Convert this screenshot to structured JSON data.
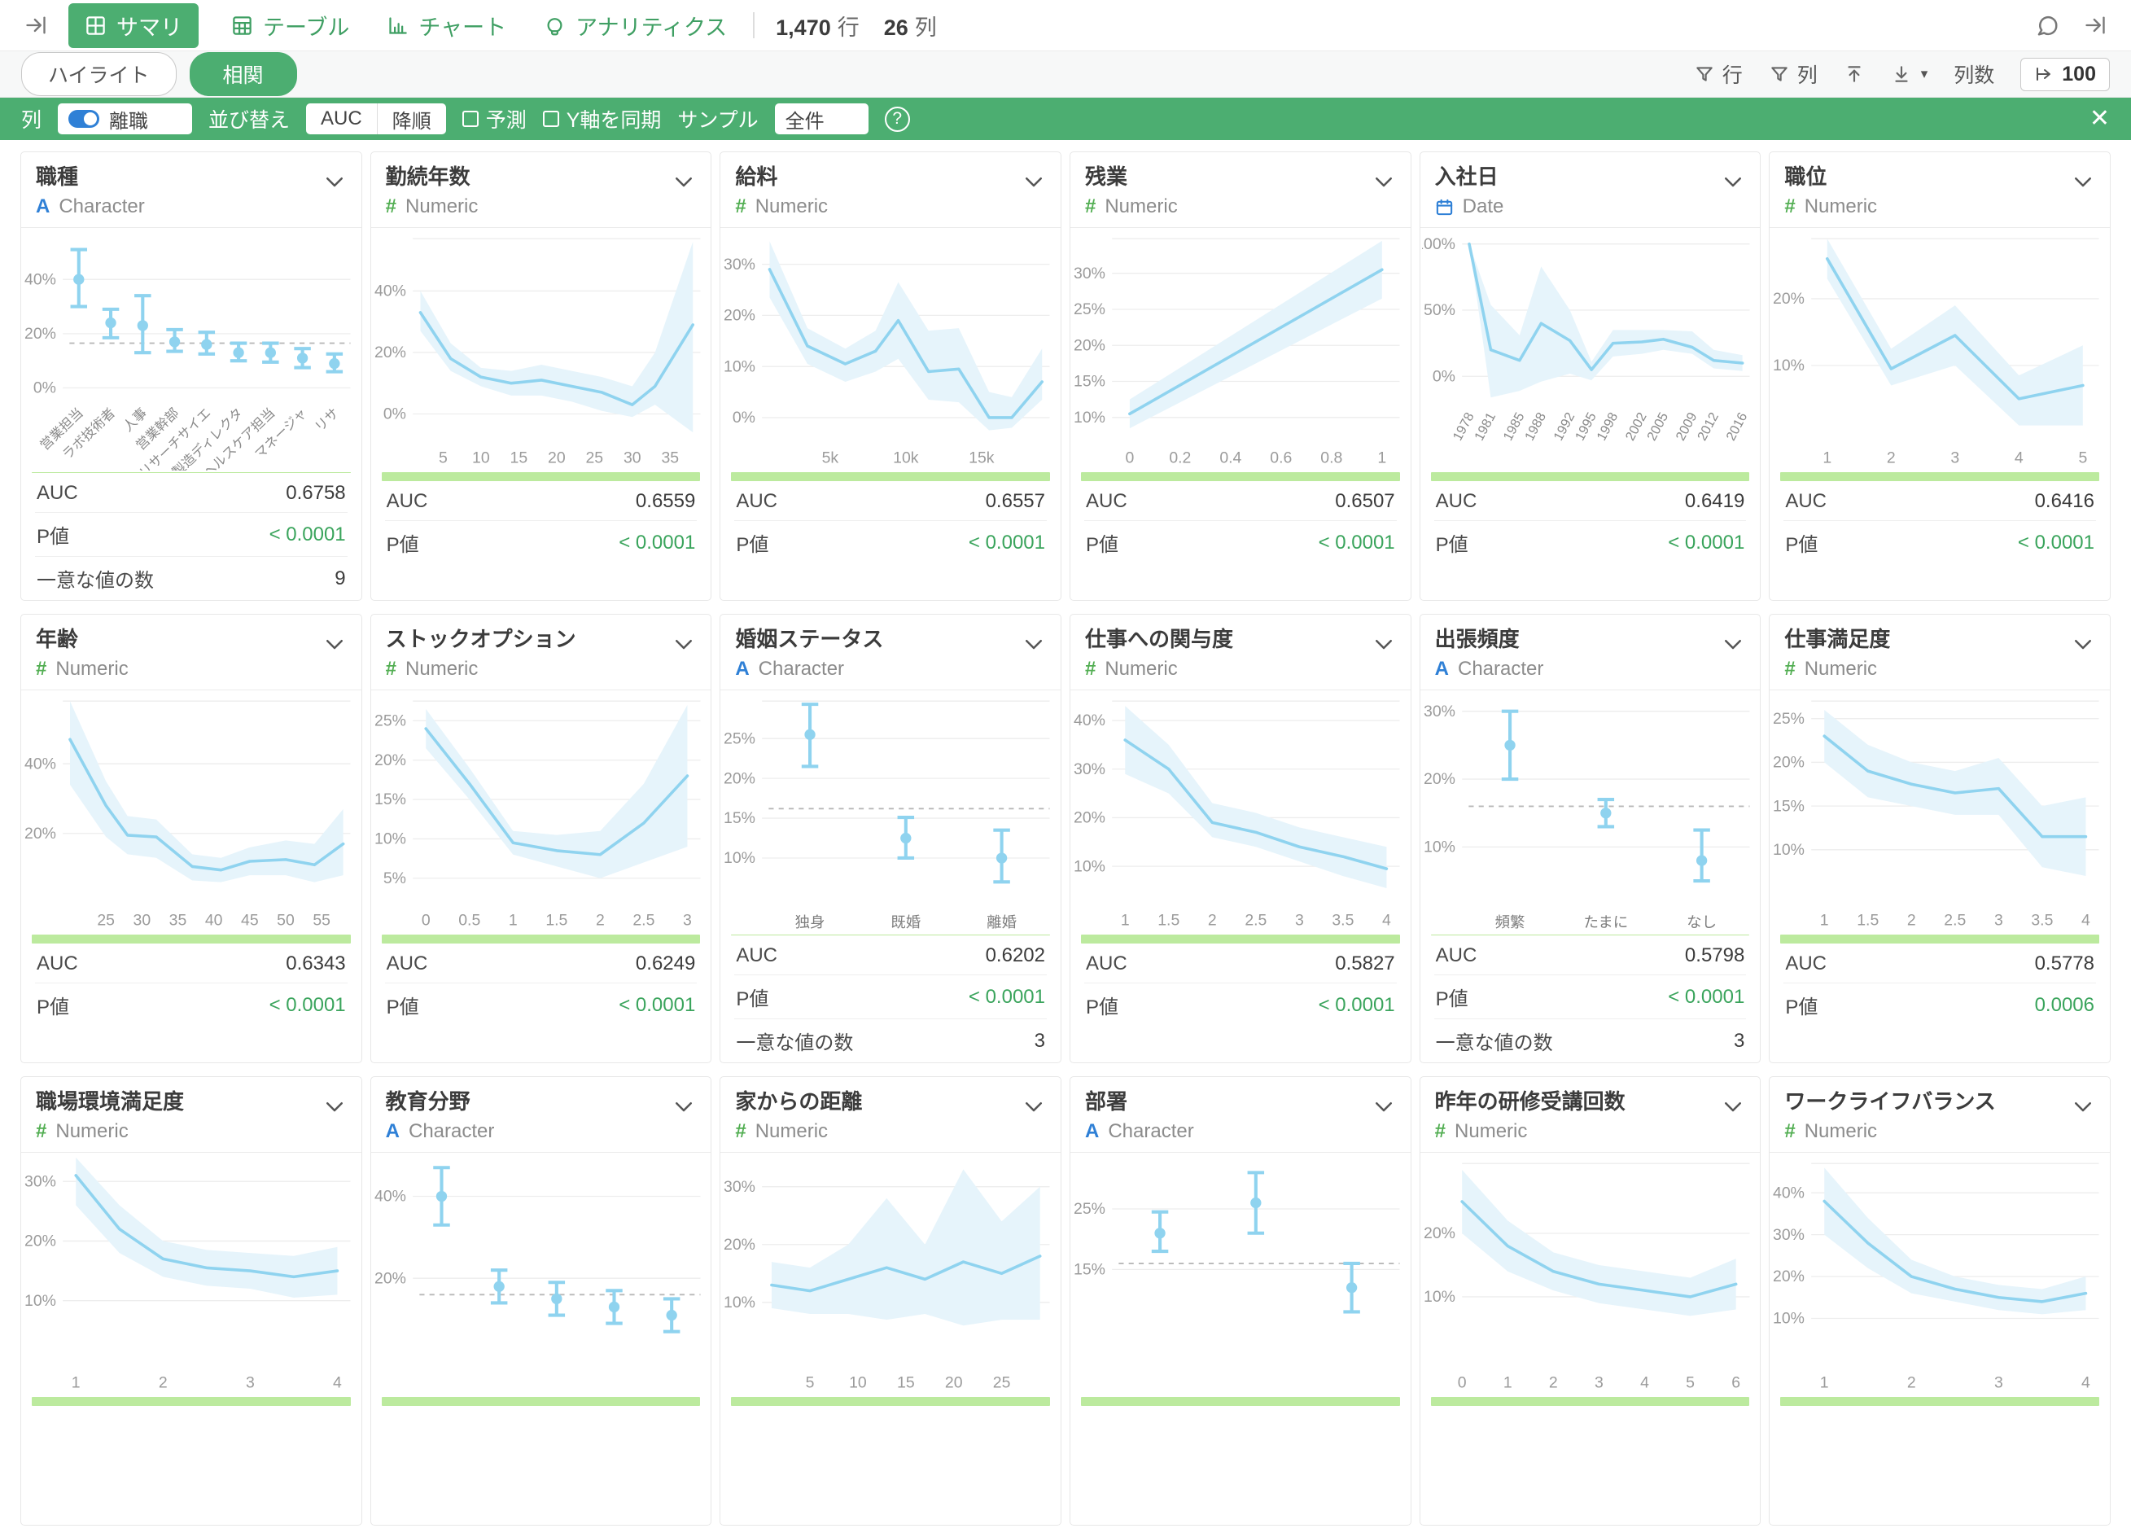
{
  "colors": {
    "accent": "#4cae71",
    "accent_text": "#3f9f63",
    "pvalue_green": "#3aa45c",
    "chart_line": "#8fd3ef",
    "chart_band": "#e6f4fb",
    "progress_bar": "#bcea9e",
    "toggle_blue": "#2f80d6",
    "character_icon_blue": "#2f80d6",
    "numeric_icon_green": "#52ae52"
  },
  "topbar": {
    "tabs": [
      {
        "label": "サマリ",
        "icon": "summary-grid-icon",
        "active": true
      },
      {
        "label": "テーブル",
        "icon": "table-icon",
        "active": false
      },
      {
        "label": "チャート",
        "icon": "bar-chart-icon",
        "active": false
      },
      {
        "label": "アナリティクス",
        "icon": "lightbulb-icon",
        "active": false
      }
    ],
    "rows_value": "1,470",
    "rows_unit": "行",
    "cols_value": "26",
    "cols_unit": "列"
  },
  "subbar": {
    "highlight_label": "ハイライト",
    "correlation_label": "相関",
    "filter_rows_label": "行",
    "filter_cols_label": "列",
    "column_count_label": "列数",
    "column_count_value": "100"
  },
  "greenbar": {
    "column_label": "列",
    "column_value": "離職",
    "sort_label": "並び替え",
    "sort_value": "AUC",
    "sort_order": "降順",
    "predict_label": "予測",
    "sync_y_label": "Y軸を同期",
    "sample_label": "サンプル",
    "sample_value": "全件"
  },
  "stat_labels": {
    "auc": "AUC",
    "pvalue": "P値",
    "unique": "一意な値の数"
  },
  "cards": [
    {
      "title": "職種",
      "type": "character",
      "type_label": "Character",
      "auc": "0.6758",
      "pvalue": "< 0.0001",
      "unique": "9",
      "chart_data": {
        "type": "errorbar",
        "rotate": true,
        "ymin": -4,
        "ymax": 55,
        "yticks": [
          0,
          20,
          40
        ],
        "dashed": 16.5,
        "topline": false,
        "cats": [
          "営業担当",
          "ラボ技術者",
          "人事",
          "営業幹部",
          "リサーチサイエ",
          "製造ディレクタ",
          "ヘルスケア担当",
          "マネージャ",
          "リサ"
        ],
        "center": [
          40,
          24,
          23,
          17,
          16,
          13,
          13,
          11,
          9
        ],
        "lo": [
          30,
          18.5,
          13,
          13.5,
          12.5,
          10,
          9.5,
          7.5,
          6
        ],
        "hi": [
          51,
          29,
          34,
          21.5,
          20.5,
          16.5,
          16.5,
          14.5,
          12.5
        ]
      }
    },
    {
      "title": "勤続年数",
      "type": "numeric",
      "type_label": "Numeric",
      "auc": "0.6559",
      "pvalue": "< 0.0001",
      "chart_data": {
        "type": "line",
        "xmin": 1,
        "xmax": 39,
        "ymin": -7,
        "ymax": 57,
        "yticks": [
          0,
          20,
          40
        ],
        "topline": true,
        "xticks": [
          5,
          10,
          15,
          20,
          25,
          30,
          35
        ],
        "x": [
          2,
          6,
          10,
          14,
          18,
          22,
          26,
          30,
          33,
          38
        ],
        "y": [
          33,
          18,
          12,
          10,
          11,
          9,
          7,
          3,
          9,
          29
        ],
        "hi": [
          40,
          23,
          15,
          14,
          16,
          14,
          12,
          9,
          20,
          56
        ],
        "lo": [
          27,
          14,
          9,
          6,
          6,
          4,
          1,
          -1,
          3,
          -6
        ]
      }
    },
    {
      "title": "給料",
      "type": "numeric",
      "type_label": "Numeric",
      "auc": "0.6557",
      "pvalue": "< 0.0001",
      "chart_data": {
        "type": "line",
        "xmin": 0.5,
        "xmax": 19.5,
        "ymin": -3.5,
        "ymax": 35,
        "yticks": [
          0,
          10,
          20,
          30
        ],
        "topline": false,
        "xticks": [
          {
            "v": 5,
            "t": "5k"
          },
          {
            "v": 10,
            "t": "10k"
          },
          {
            "v": 15,
            "t": "15k"
          }
        ],
        "x": [
          1,
          3.5,
          6,
          8,
          9.5,
          11.5,
          13.5,
          15.5,
          17,
          19
        ],
        "y": [
          29,
          14,
          10.5,
          13,
          19,
          9,
          9.5,
          0,
          0,
          7
        ],
        "hi": [
          34.5,
          17.5,
          13.5,
          17,
          26.5,
          17,
          17.5,
          5,
          4,
          13.5
        ],
        "lo": [
          23.5,
          10.5,
          7,
          9,
          11.5,
          3.5,
          3,
          -2.5,
          -2,
          3.5
        ]
      }
    },
    {
      "title": "残業",
      "type": "numeric",
      "type_label": "Numeric",
      "auc": "0.6507",
      "pvalue": "< 0.0001",
      "chart_data": {
        "type": "line",
        "xmin": -0.07,
        "xmax": 1.07,
        "ymin": 7.5,
        "ymax": 34.8,
        "yticks": [
          10,
          15,
          20,
          25,
          30
        ],
        "topline": true,
        "xticks": [
          0,
          0.2,
          0.4,
          0.6,
          0.8,
          1
        ],
        "x": [
          0,
          1
        ],
        "y": [
          10.5,
          30.5
        ],
        "hi": [
          12.5,
          34.5
        ],
        "lo": [
          8.5,
          26.5
        ]
      }
    },
    {
      "title": "入社日",
      "type": "date",
      "type_label": "Date",
      "auc": "0.6419",
      "pvalue": "< 0.0001",
      "chart_data": {
        "type": "line",
        "rotate": true,
        "xmin": 1977,
        "xmax": 2017,
        "ymin": -17,
        "ymax": 104,
        "yticks": [
          0,
          50,
          100
        ],
        "topline": false,
        "xticks": [
          1978,
          1981,
          1985,
          1988,
          1992,
          1995,
          1998,
          2002,
          2005,
          2009,
          2012,
          2016
        ],
        "x": [
          1978,
          1981,
          1985,
          1988,
          1992,
          1995,
          1998,
          2002,
          2005,
          2009,
          2012,
          2016
        ],
        "y": [
          100,
          20,
          12,
          40,
          27,
          5,
          25,
          26,
          28,
          22,
          12,
          10
        ],
        "hi": [
          100,
          54,
          31,
          83,
          50,
          11,
          35,
          35,
          35,
          34,
          20,
          16
        ],
        "lo": [
          100,
          -16,
          -11,
          -4,
          2,
          -3,
          15,
          17,
          20,
          17,
          6,
          4
        ]
      }
    },
    {
      "title": "職位",
      "type": "numeric",
      "type_label": "Numeric",
      "auc": "0.6416",
      "pvalue": "< 0.0001",
      "chart_data": {
        "type": "line",
        "xmin": 0.75,
        "xmax": 5.25,
        "ymin": -0.5,
        "ymax": 29,
        "yticks": [
          10,
          20
        ],
        "topline": true,
        "xticks": [
          1,
          2,
          3,
          4,
          5
        ],
        "x": [
          1,
          2,
          3,
          4,
          5
        ],
        "y": [
          26,
          9.5,
          14.5,
          5,
          7
        ],
        "hi": [
          29,
          12.5,
          19,
          8.5,
          13
        ],
        "lo": [
          23,
          7,
          10,
          1,
          1
        ]
      }
    },
    {
      "title": "年齢",
      "type": "numeric",
      "type_label": "Numeric",
      "auc": "0.6343",
      "pvalue": "< 0.0001",
      "chart_data": {
        "type": "line",
        "xmin": 19,
        "xmax": 59,
        "ymin": 1.5,
        "ymax": 58,
        "yticks": [
          20,
          40
        ],
        "topline": true,
        "xticks": [
          25,
          30,
          35,
          40,
          45,
          50,
          55
        ],
        "x": [
          20,
          25,
          28,
          32,
          37,
          41,
          45,
          50,
          54,
          58
        ],
        "y": [
          47,
          28,
          19.5,
          19,
          10.5,
          9.5,
          12,
          12.5,
          11,
          17
        ],
        "hi": [
          58,
          35,
          25,
          24,
          14,
          13,
          16,
          18,
          17,
          27
        ],
        "lo": [
          34,
          19,
          14,
          13,
          6.5,
          6,
          8,
          8,
          6,
          8
        ]
      }
    },
    {
      "title": "ストックオプション",
      "type": "numeric",
      "type_label": "Numeric",
      "auc": "0.6249",
      "pvalue": "< 0.0001",
      "chart_data": {
        "type": "line",
        "xmin": -0.15,
        "xmax": 3.15,
        "ymin": 2.5,
        "ymax": 27.5,
        "yticks": [
          5,
          10,
          15,
          20,
          25
        ],
        "topline": true,
        "xticks": [
          0,
          0.5,
          1,
          1.5,
          2,
          2.5,
          3
        ],
        "x": [
          0,
          0.5,
          1,
          1.5,
          2,
          2.5,
          3
        ],
        "y": [
          24,
          17,
          9.5,
          8.5,
          8,
          12,
          18
        ],
        "hi": [
          26.5,
          19,
          11,
          10.5,
          11,
          17,
          27
        ],
        "lo": [
          21.5,
          15,
          8,
          6.5,
          5,
          7,
          9
        ]
      }
    },
    {
      "title": "婚姻ステータス",
      "type": "character",
      "type_label": "Character",
      "auc": "0.6202",
      "pvalue": "< 0.0001",
      "unique": "3",
      "chart_data": {
        "type": "errorbar",
        "ymin": 5,
        "ymax": 29.7,
        "yticks": [
          10,
          15,
          20,
          25
        ],
        "dashed": 16.2,
        "topline": true,
        "cats": [
          "独身",
          "既婚",
          "離婚"
        ],
        "center": [
          25.5,
          12.5,
          10
        ],
        "lo": [
          21.5,
          10,
          7
        ],
        "hi": [
          29.3,
          15.1,
          13.5
        ]
      }
    },
    {
      "title": "仕事への関与度",
      "type": "numeric",
      "type_label": "Numeric",
      "auc": "0.5827",
      "pvalue": "< 0.0001",
      "chart_data": {
        "type": "line",
        "xmin": 0.85,
        "xmax": 4.15,
        "ymin": 3.5,
        "ymax": 44,
        "yticks": [
          10,
          20,
          30,
          40
        ],
        "topline": true,
        "xticks": [
          1,
          1.5,
          2,
          2.5,
          3,
          3.5,
          4
        ],
        "x": [
          1,
          1.5,
          2,
          2.5,
          3,
          3.5,
          4
        ],
        "y": [
          36,
          30,
          19,
          17,
          14,
          12,
          9.5
        ],
        "hi": [
          43,
          35,
          23,
          21,
          18,
          16,
          14
        ],
        "lo": [
          29,
          25,
          16,
          14,
          11,
          8,
          5.5
        ]
      }
    },
    {
      "title": "出張頻度",
      "type": "character",
      "type_label": "Character",
      "auc": "0.5798",
      "pvalue": "< 0.0001",
      "unique": "3",
      "chart_data": {
        "type": "errorbar",
        "ymin": 2.5,
        "ymax": 31.5,
        "yticks": [
          10,
          20,
          30
        ],
        "dashed": 16,
        "topline": false,
        "cats": [
          "頻繁",
          "たまに",
          "なし"
        ],
        "center": [
          25,
          15,
          8
        ],
        "lo": [
          20,
          13,
          5
        ],
        "hi": [
          30,
          17,
          12.5
        ]
      }
    },
    {
      "title": "仕事満足度",
      "type": "numeric",
      "type_label": "Numeric",
      "auc": "0.5778",
      "pvalue": "0.0006",
      "chart_data": {
        "type": "line",
        "xmin": 0.85,
        "xmax": 4.15,
        "ymin": 4.5,
        "ymax": 27,
        "yticks": [
          10,
          15,
          20,
          25
        ],
        "topline": true,
        "xticks": [
          1,
          1.5,
          2,
          2.5,
          3,
          3.5,
          4
        ],
        "x": [
          1,
          1.5,
          2,
          2.5,
          3,
          3.5,
          4
        ],
        "y": [
          23,
          19,
          17.5,
          16.5,
          17,
          11.5,
          11.5
        ],
        "hi": [
          26,
          22,
          20,
          19,
          20.5,
          15,
          16
        ],
        "lo": [
          20,
          16,
          15,
          14,
          14,
          8,
          7
        ]
      }
    },
    {
      "title": "職場環境満足度",
      "type": "numeric",
      "type_label": "Numeric",
      "chart_data": {
        "type": "line",
        "xmin": 0.85,
        "xmax": 4.15,
        "ymin": 0,
        "ymax": 33,
        "yticks": [
          30,
          20,
          10
        ],
        "topline": false,
        "xticks": [
          1,
          2,
          3,
          4
        ],
        "x": [
          1,
          1.5,
          2,
          2.5,
          3,
          3.5,
          4
        ],
        "y": [
          31,
          22,
          17,
          15.5,
          15,
          14,
          15
        ],
        "hi": [
          34,
          26,
          20,
          18.5,
          18,
          17.5,
          19
        ],
        "lo": [
          26,
          18,
          14,
          12.5,
          12,
          10.5,
          11
        ]
      }
    },
    {
      "title": "教育分野",
      "type": "character",
      "type_label": "Character",
      "chart_data": {
        "type": "errorbar",
        "ymin": 0,
        "ymax": 48,
        "yticks": [
          40,
          20
        ],
        "dashed": 16,
        "topline": false,
        "cats": [
          "",
          "",
          "",
          "",
          ""
        ],
        "center": [
          40,
          18,
          15,
          13,
          11
        ],
        "lo": [
          33,
          14,
          11,
          9,
          7
        ],
        "hi": [
          47,
          22,
          19,
          17,
          15
        ]
      }
    },
    {
      "title": "家からの距離",
      "type": "numeric",
      "type_label": "Numeric",
      "chart_data": {
        "type": "line",
        "xmin": 0,
        "xmax": 30,
        "ymin": 0,
        "ymax": 34,
        "yticks": [
          30,
          20,
          10
        ],
        "topline": false,
        "xticks": [
          5,
          10,
          15,
          20,
          25
        ],
        "x": [
          1,
          5,
          9,
          13,
          17,
          21,
          25,
          29
        ],
        "y": [
          13,
          12,
          14,
          16,
          14,
          17,
          15,
          18
        ],
        "hi": [
          17,
          16,
          20,
          28,
          20,
          33,
          24,
          30
        ],
        "lo": [
          9,
          8,
          8,
          7,
          8,
          6,
          7,
          7
        ]
      }
    },
    {
      "title": "部署",
      "type": "character",
      "type_label": "Character",
      "chart_data": {
        "type": "errorbar",
        "ymin": 0,
        "ymax": 32.5,
        "yticks": [
          25,
          15
        ],
        "dashed": 16,
        "topline": false,
        "cats": [
          "",
          "",
          ""
        ],
        "center": [
          21,
          26,
          12
        ],
        "lo": [
          18,
          21,
          8
        ],
        "hi": [
          24.5,
          31,
          16
        ]
      }
    },
    {
      "title": "昨年の研修受講回数",
      "type": "numeric",
      "type_label": "Numeric",
      "chart_data": {
        "type": "line",
        "xmin": 0,
        "xmax": 6.3,
        "ymin": 0,
        "ymax": 31,
        "yticks": [
          20,
          10
        ],
        "topline": true,
        "xticks": [
          0,
          1,
          2,
          3,
          4,
          5,
          6
        ],
        "x": [
          0,
          1,
          2,
          3,
          4,
          5,
          6
        ],
        "y": [
          25,
          18,
          14,
          12,
          11,
          10,
          12
        ],
        "hi": [
          30,
          22,
          17,
          15,
          14,
          13,
          16
        ],
        "lo": [
          20,
          14,
          11,
          9,
          8,
          7,
          8
        ]
      }
    },
    {
      "title": "ワークライフバランス",
      "type": "numeric",
      "type_label": "Numeric",
      "chart_data": {
        "type": "line",
        "xmin": 0.85,
        "xmax": 4.15,
        "ymin": 0,
        "ymax": 47,
        "yticks": [
          40,
          30,
          20,
          10
        ],
        "topline": true,
        "xticks": [
          1,
          2,
          3,
          4
        ],
        "x": [
          1,
          1.5,
          2,
          2.5,
          3,
          3.5,
          4
        ],
        "y": [
          38,
          28,
          20,
          17,
          15,
          14,
          16
        ],
        "hi": [
          46,
          34,
          24,
          20,
          18,
          17,
          20
        ],
        "lo": [
          30,
          22,
          16,
          14,
          12,
          11,
          12
        ]
      }
    }
  ]
}
